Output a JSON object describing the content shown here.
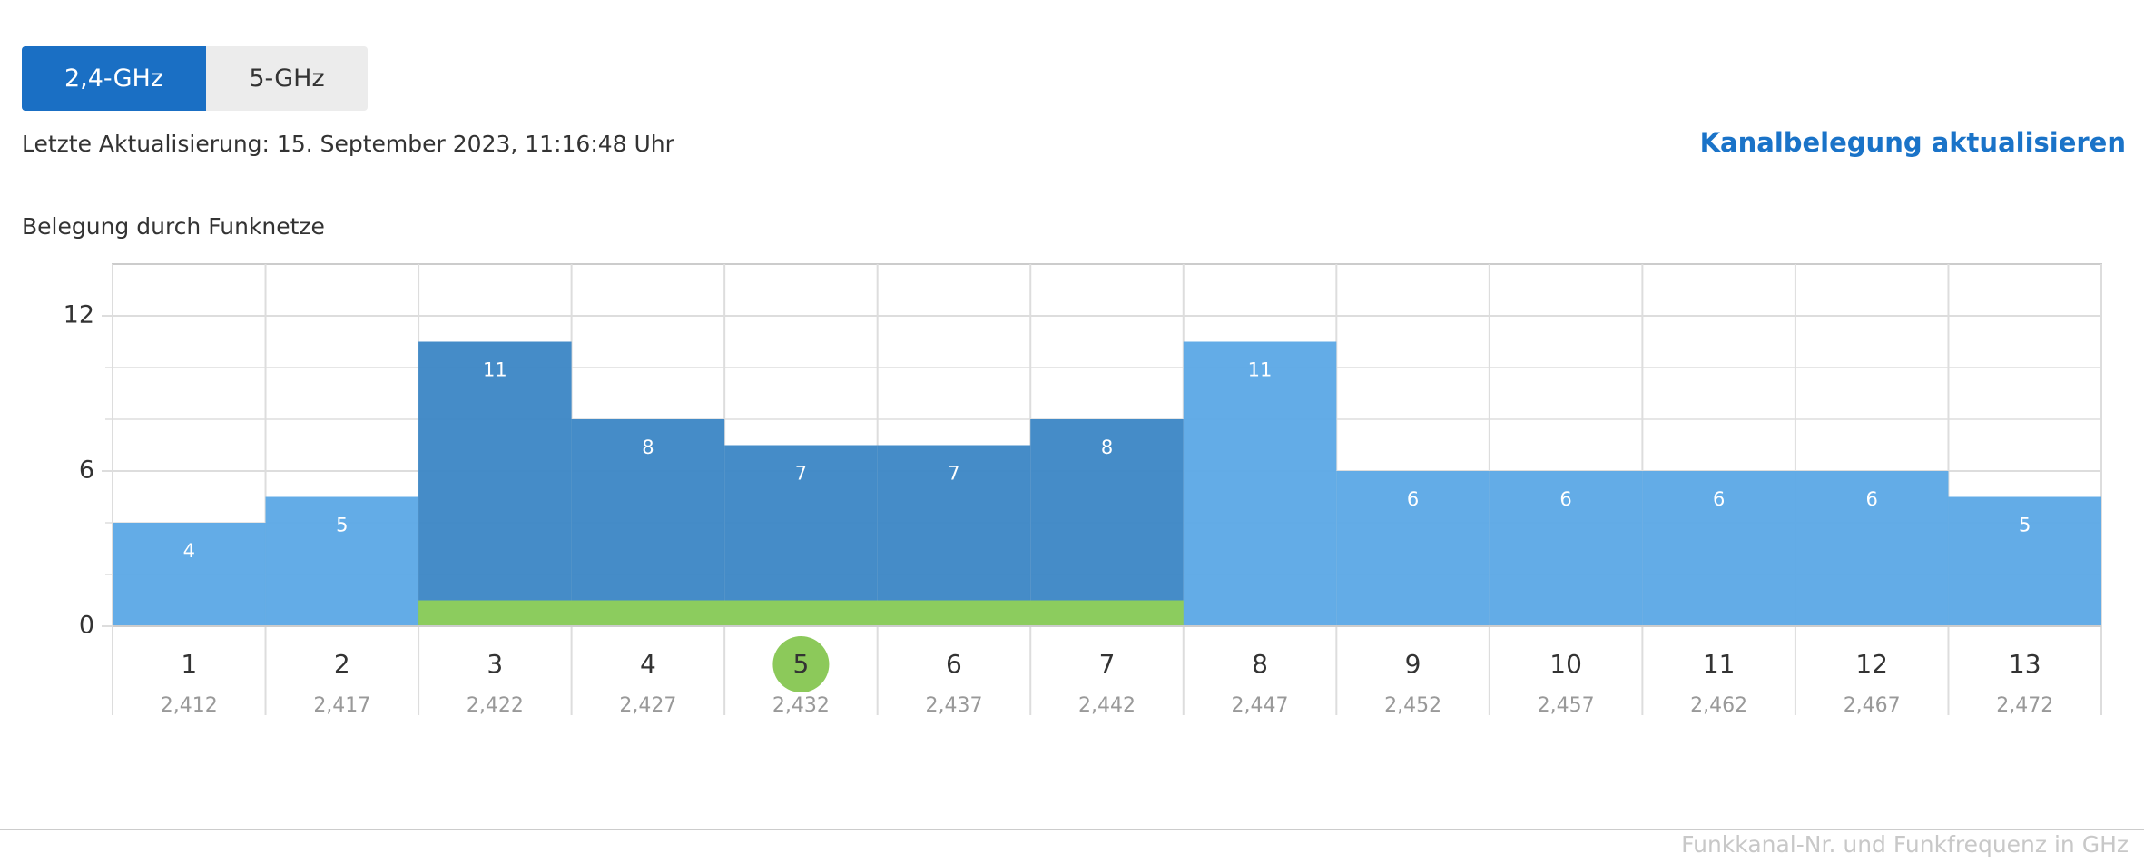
{
  "tabs": [
    {
      "label": "2,4-GHz",
      "active": true
    },
    {
      "label": "5-GHz",
      "active": false
    }
  ],
  "last_update": "Letzte Aktualisierung: 15. September 2023, 11:16:48 Uhr",
  "refresh_link": "Kanalbelegung aktualisieren",
  "chart_data": {
    "type": "bar",
    "title": "Belegung durch Funknetze",
    "categories": [
      "1",
      "2",
      "3",
      "4",
      "5",
      "6",
      "7",
      "8",
      "9",
      "10",
      "11",
      "12",
      "13"
    ],
    "frequencies": [
      "2,412",
      "2,417",
      "2,422",
      "2,427",
      "2,432",
      "2,437",
      "2,442",
      "2,447",
      "2,452",
      "2,457",
      "2,462",
      "2,467",
      "2,472"
    ],
    "values": [
      4,
      5,
      11,
      8,
      7,
      7,
      8,
      11,
      6,
      6,
      6,
      6,
      5
    ],
    "colors": [
      "#5ba8e6",
      "#5ba8e6",
      "#3b86c5",
      "#3b86c5",
      "#3b86c5",
      "#3b86c5",
      "#3b86c5",
      "#5ba8e6",
      "#5ba8e6",
      "#5ba8e6",
      "#5ba8e6",
      "#5ba8e6",
      "#5ba8e6"
    ],
    "ylim": [
      0,
      14
    ],
    "yticks": [
      0,
      6,
      12
    ],
    "minor_yticks": [
      2,
      4,
      8,
      10
    ],
    "grid": true,
    "band": {
      "first": 2,
      "last": 6,
      "value": 1,
      "color": "#8ccc5e"
    },
    "selected": 4,
    "selected_color": "#8cc95a",
    "x_label": "Funkkanal-Nr. und Funkfrequenz in GHz"
  }
}
